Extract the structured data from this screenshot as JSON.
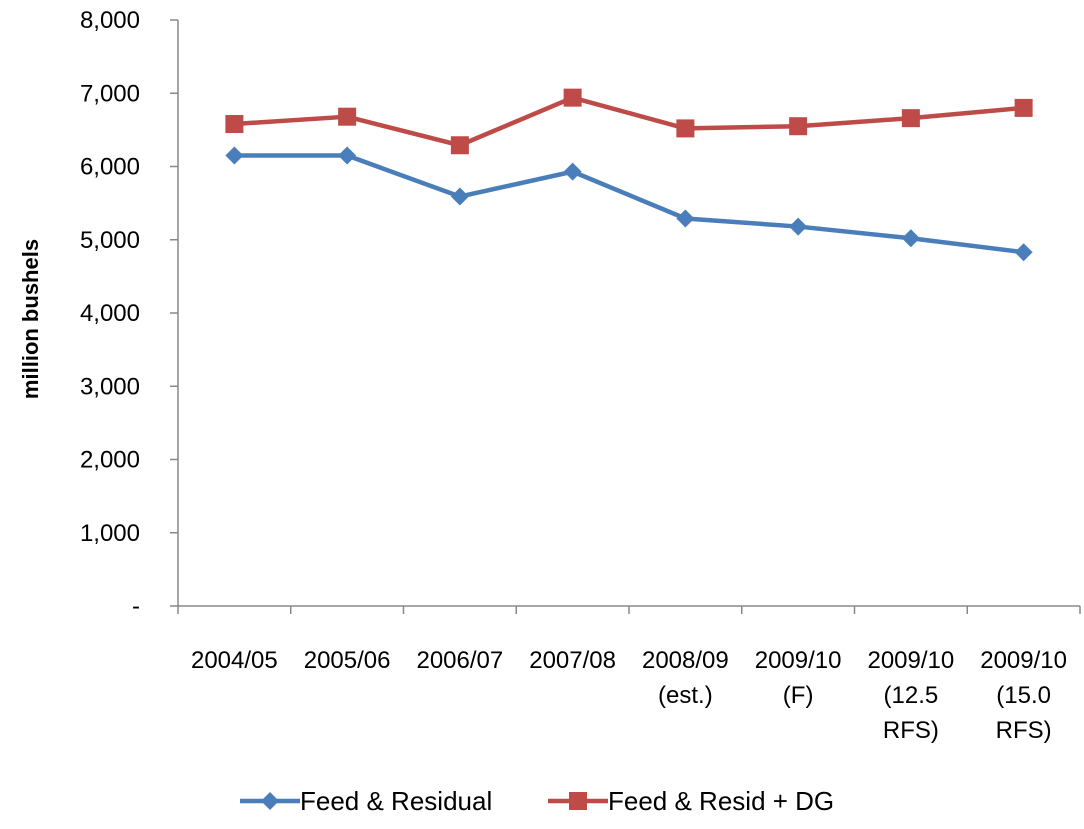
{
  "chart_data": {
    "type": "line",
    "title": "",
    "xlabel": "",
    "ylabel": "million bushels",
    "ylim": [
      0,
      8000
    ],
    "y_ticks": [
      {
        "value": 0,
        "label": "-"
      },
      {
        "value": 1000,
        "label": "1,000"
      },
      {
        "value": 2000,
        "label": "2,000"
      },
      {
        "value": 3000,
        "label": "3,000"
      },
      {
        "value": 4000,
        "label": "4,000"
      },
      {
        "value": 5000,
        "label": "5,000"
      },
      {
        "value": 6000,
        "label": "6,000"
      },
      {
        "value": 7000,
        "label": "7,000"
      },
      {
        "value": 8000,
        "label": "8,000"
      }
    ],
    "categories": [
      [
        "2004/05"
      ],
      [
        "2005/06"
      ],
      [
        "2006/07"
      ],
      [
        "2007/08"
      ],
      [
        "2008/09",
        "(est.)"
      ],
      [
        "2009/10",
        "(F)"
      ],
      [
        "2009/10",
        "(12.5",
        "RFS)"
      ],
      [
        "2009/10",
        "(15.0",
        "RFS)"
      ]
    ],
    "grid": false,
    "legend_position": "bottom",
    "series": [
      {
        "name": "Feed & Residual",
        "color": "#4a7ebb",
        "marker": "diamond",
        "values": [
          6150,
          6150,
          5590,
          5930,
          5290,
          5180,
          5020,
          4830
        ]
      },
      {
        "name": "Feed & Resid + DG",
        "color": "#be4b48",
        "marker": "square",
        "values": [
          6580,
          6680,
          6290,
          6940,
          6520,
          6550,
          6660,
          6800
        ]
      }
    ]
  }
}
